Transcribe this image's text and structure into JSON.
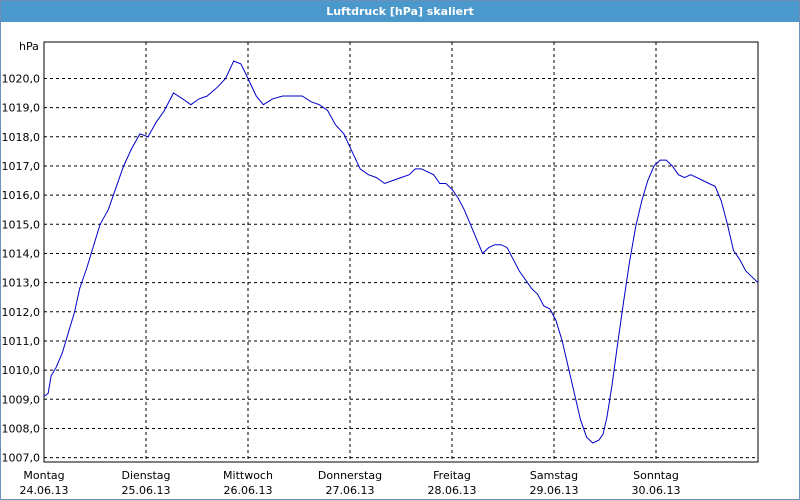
{
  "window": {
    "title": "Luftdruck [hPa] skaliert"
  },
  "chart_data": {
    "type": "line",
    "title": "Luftdruck [hPa] skaliert",
    "ylabel": "hPa",
    "xlabel": "",
    "ylim": [
      1006.85,
      1021.25
    ],
    "xlim": [
      0,
      7
    ],
    "grid": true,
    "colors": {
      "line": "#0000c8",
      "grid": "#000000",
      "background": "#ffffff",
      "titlebar": "#4a98cc"
    },
    "y_ticks": [
      "1007,0",
      "1008,0",
      "1009,0",
      "1010,0",
      "1011,0",
      "1012,0",
      "1013,0",
      "1014,0",
      "1015,0",
      "1016,0",
      "1017,0",
      "1018,0",
      "1019,0",
      "1020,0"
    ],
    "x_ticks": [
      {
        "day": "Montag",
        "date": "24.06.13"
      },
      {
        "day": "Dienstag",
        "date": "25.06.13"
      },
      {
        "day": "Mittwoch",
        "date": "26.06.13"
      },
      {
        "day": "Donnerstag",
        "date": "27.06.13"
      },
      {
        "day": "Freitag",
        "date": "28.06.13"
      },
      {
        "day": "Samstag",
        "date": "29.06.13"
      },
      {
        "day": "Sonntag",
        "date": "30.06.13"
      }
    ],
    "series": [
      {
        "values": [
          [
            0.0,
            1009.1
          ],
          [
            0.04,
            1009.2
          ],
          [
            0.07,
            1009.8
          ],
          [
            0.12,
            1010.1
          ],
          [
            0.18,
            1010.6
          ],
          [
            0.24,
            1011.3
          ],
          [
            0.3,
            1012.0
          ],
          [
            0.35,
            1012.8
          ],
          [
            0.42,
            1013.5
          ],
          [
            0.48,
            1014.2
          ],
          [
            0.55,
            1015.0
          ],
          [
            0.63,
            1015.5
          ],
          [
            0.7,
            1016.2
          ],
          [
            0.78,
            1017.0
          ],
          [
            0.86,
            1017.6
          ],
          [
            0.94,
            1018.1
          ],
          [
            1.02,
            1018.0
          ],
          [
            1.1,
            1018.5
          ],
          [
            1.18,
            1018.9
          ],
          [
            1.27,
            1019.5
          ],
          [
            1.36,
            1019.3
          ],
          [
            1.44,
            1019.1
          ],
          [
            1.52,
            1019.3
          ],
          [
            1.6,
            1019.4
          ],
          [
            1.7,
            1019.7
          ],
          [
            1.78,
            1020.0
          ],
          [
            1.86,
            1020.6
          ],
          [
            1.93,
            1020.5
          ],
          [
            2.0,
            1020.0
          ],
          [
            2.08,
            1019.4
          ],
          [
            2.15,
            1019.1
          ],
          [
            2.24,
            1019.3
          ],
          [
            2.34,
            1019.4
          ],
          [
            2.44,
            1019.4
          ],
          [
            2.53,
            1019.4
          ],
          [
            2.62,
            1019.2
          ],
          [
            2.7,
            1019.1
          ],
          [
            2.78,
            1018.9
          ],
          [
            2.86,
            1018.4
          ],
          [
            2.94,
            1018.1
          ],
          [
            3.02,
            1017.5
          ],
          [
            3.1,
            1016.9
          ],
          [
            3.18,
            1016.7
          ],
          [
            3.26,
            1016.6
          ],
          [
            3.34,
            1016.4
          ],
          [
            3.42,
            1016.5
          ],
          [
            3.5,
            1016.6
          ],
          [
            3.58,
            1016.7
          ],
          [
            3.64,
            1016.9
          ],
          [
            3.7,
            1016.9
          ],
          [
            3.76,
            1016.8
          ],
          [
            3.82,
            1016.7
          ],
          [
            3.88,
            1016.4
          ],
          [
            3.94,
            1016.4
          ],
          [
            4.0,
            1016.2
          ],
          [
            4.06,
            1015.9
          ],
          [
            4.12,
            1015.5
          ],
          [
            4.18,
            1015.0
          ],
          [
            4.24,
            1014.5
          ],
          [
            4.3,
            1014.0
          ],
          [
            4.36,
            1014.2
          ],
          [
            4.42,
            1014.3
          ],
          [
            4.48,
            1014.3
          ],
          [
            4.54,
            1014.2
          ],
          [
            4.6,
            1013.8
          ],
          [
            4.66,
            1013.4
          ],
          [
            4.72,
            1013.1
          ],
          [
            4.78,
            1012.8
          ],
          [
            4.84,
            1012.6
          ],
          [
            4.9,
            1012.2
          ],
          [
            4.96,
            1012.1
          ],
          [
            5.02,
            1011.7
          ],
          [
            5.08,
            1011.0
          ],
          [
            5.14,
            1010.1
          ],
          [
            5.2,
            1009.2
          ],
          [
            5.26,
            1008.3
          ],
          [
            5.32,
            1007.7
          ],
          [
            5.38,
            1007.5
          ],
          [
            5.44,
            1007.6
          ],
          [
            5.48,
            1007.8
          ],
          [
            5.52,
            1008.4
          ],
          [
            5.57,
            1009.5
          ],
          [
            5.62,
            1010.8
          ],
          [
            5.68,
            1012.3
          ],
          [
            5.74,
            1013.7
          ],
          [
            5.8,
            1014.9
          ],
          [
            5.86,
            1015.8
          ],
          [
            5.92,
            1016.5
          ],
          [
            5.98,
            1017.0
          ],
          [
            6.04,
            1017.2
          ],
          [
            6.1,
            1017.2
          ],
          [
            6.16,
            1017.0
          ],
          [
            6.22,
            1016.7
          ],
          [
            6.28,
            1016.6
          ],
          [
            6.34,
            1016.7
          ],
          [
            6.4,
            1016.6
          ],
          [
            6.46,
            1016.5
          ],
          [
            6.52,
            1016.4
          ],
          [
            6.58,
            1016.3
          ],
          [
            6.64,
            1015.8
          ],
          [
            6.7,
            1015.0
          ],
          [
            6.76,
            1014.1
          ],
          [
            6.82,
            1013.8
          ],
          [
            6.88,
            1013.4
          ],
          [
            6.94,
            1013.2
          ],
          [
            7.0,
            1013.0
          ]
        ]
      }
    ]
  }
}
